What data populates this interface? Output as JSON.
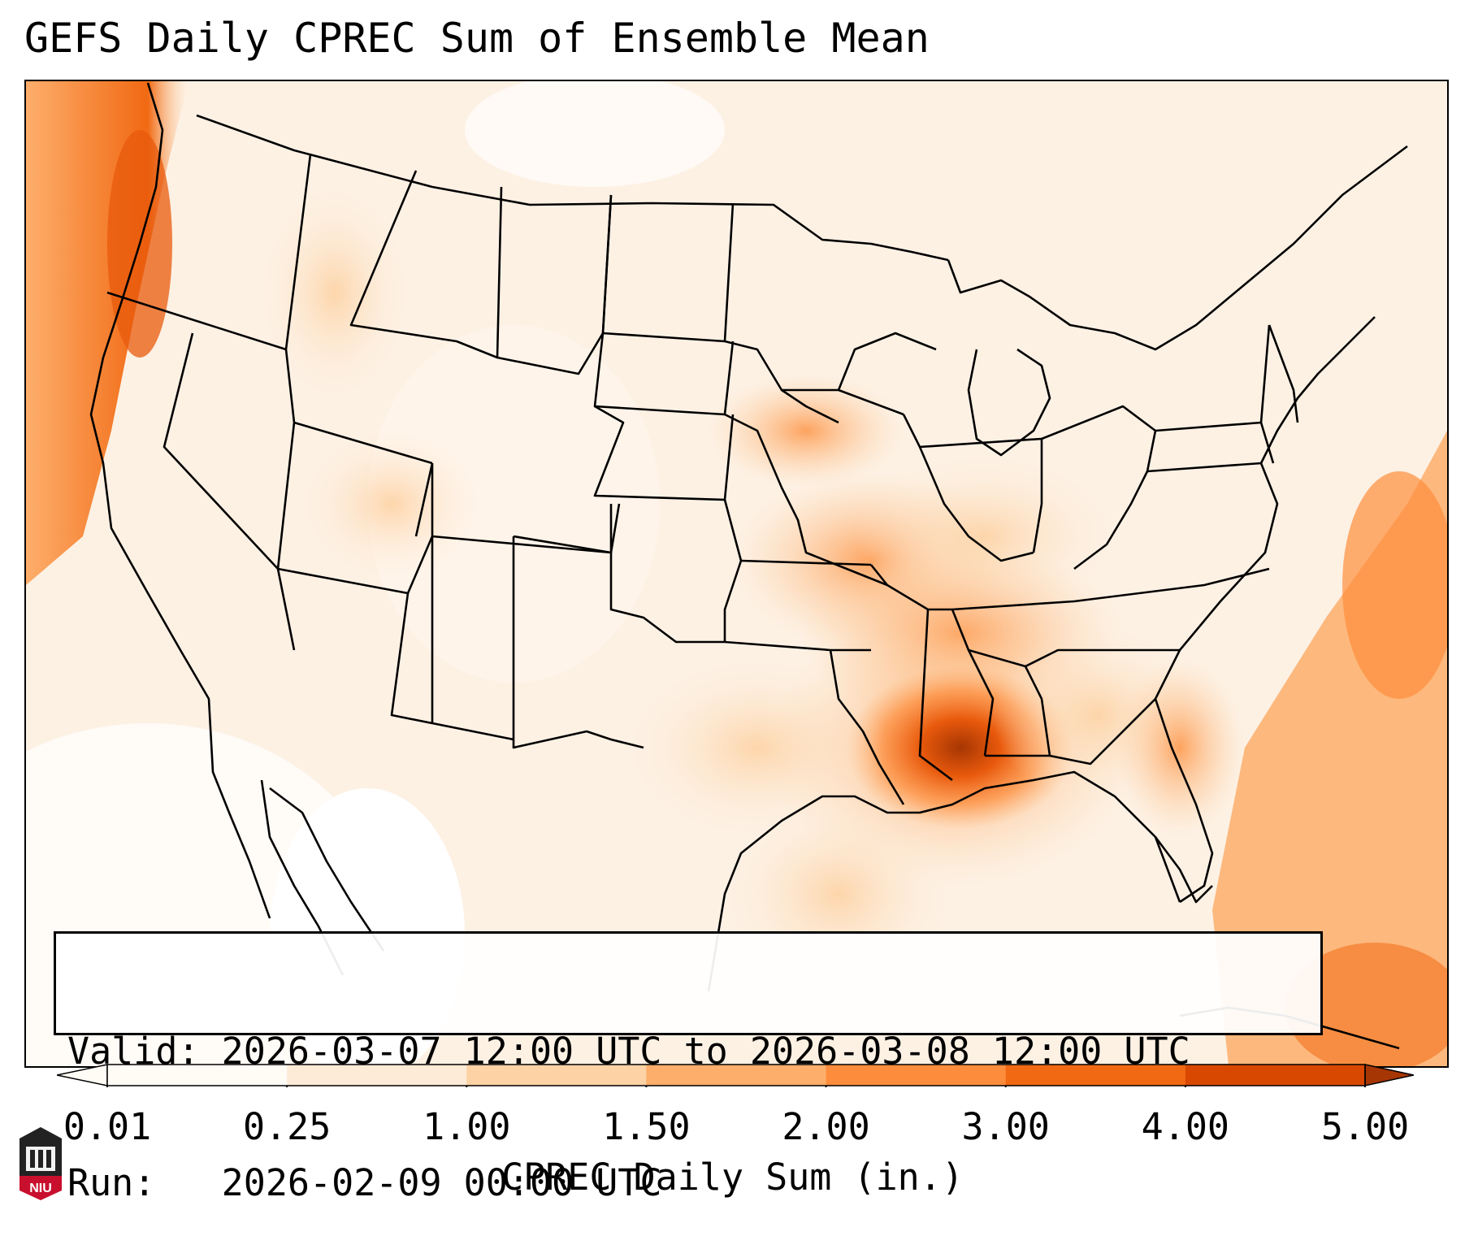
{
  "header": {
    "title": "GEFS Daily CPREC Sum of Ensemble Mean"
  },
  "info": {
    "valid_line": "Valid: 2026-03-07 12:00 UTC to 2026-03-08 12:00 UTC",
    "run_line": "Run:   2026-02-09 00:00 UTC"
  },
  "colorbar": {
    "label": "CPREC Daily Sum (in.)",
    "ticks": [
      "0.01",
      "0.25",
      "1.00",
      "1.50",
      "2.00",
      "3.00",
      "4.00",
      "5.00"
    ],
    "colors": [
      "#fffbf5",
      "#fdebd7",
      "#fdd2a4",
      "#fdae6b",
      "#fd8d3c",
      "#f16913",
      "#d94801",
      "#a63603"
    ],
    "extend": "both"
  },
  "map": {
    "projection": "Lambert Conformal",
    "region": "CONUS",
    "overlay": "state and coastline borders",
    "max_precip_area": "Mississippi / Alabama Gulf coast"
  },
  "logo": {
    "name": "niu-logo",
    "text": "NIU"
  }
}
